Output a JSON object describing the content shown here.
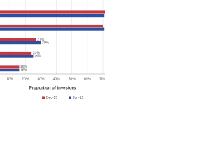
{
  "chart_data": {
    "type": "hbar",
    "x_label": "Proportion of investors",
    "categories": [
      null,
      null,
      null,
      null,
      null
    ],
    "series": [
      {
        "name": "Dec-15",
        "color": "#c4393f",
        "values": [
          72,
          70,
          27,
          24,
          16
        ],
        "value_labels": [
          null,
          null,
          "27%",
          "24%",
          "16%"
        ]
      },
      {
        "name": "Jun-15",
        "color": "#2e4f9e",
        "values": [
          71,
          71,
          30,
          25,
          16
        ],
        "value_labels": [
          null,
          null,
          "30%",
          "25%",
          "16%"
        ]
      }
    ],
    "xlim": [
      0,
      70
    ],
    "xticks": [
      {
        "value": 10,
        "label": "10%"
      },
      {
        "value": 20,
        "label": "20%"
      },
      {
        "value": 30,
        "label": "30%"
      },
      {
        "value": 40,
        "label": "40%"
      },
      {
        "value": 50,
        "label": "50%"
      },
      {
        "value": 60,
        "label": "60%"
      },
      {
        "value": 70,
        "label": "70%"
      }
    ],
    "grid": true
  }
}
